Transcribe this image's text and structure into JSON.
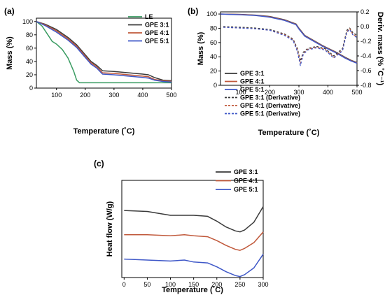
{
  "chart_data": [
    {
      "type": "line",
      "panel_label": "(a)",
      "xlabel": "Temperature (˚C)",
      "ylabel": "Mass (%)",
      "xlim": [
        30,
        500
      ],
      "ylim": [
        0,
        105
      ],
      "x_ticks": [
        100,
        200,
        300,
        400,
        500
      ],
      "y_ticks": [
        0,
        20,
        40,
        60,
        80,
        100
      ],
      "legend_position": "top-right",
      "series": [
        {
          "name": "LE",
          "color": "#3a9c62",
          "x": [
            30,
            50,
            70,
            85,
            100,
            120,
            140,
            160,
            170,
            180,
            200,
            300,
            400,
            500
          ],
          "y": [
            100,
            93,
            80,
            70,
            66,
            58,
            45,
            25,
            12,
            8,
            8,
            8,
            8,
            8
          ]
        },
        {
          "name": "GPE 3:1",
          "color": "#3a3a3a",
          "x": [
            30,
            60,
            100,
            140,
            170,
            200,
            220,
            240,
            260,
            300,
            350,
            400,
            420,
            440,
            470,
            500
          ],
          "y": [
            100,
            96,
            88,
            76,
            65,
            50,
            40,
            34,
            26,
            25,
            23,
            21,
            20,
            16,
            12,
            11
          ]
        },
        {
          "name": "GPE 4:1",
          "color": "#c0583a",
          "x": [
            30,
            60,
            100,
            140,
            170,
            200,
            220,
            240,
            260,
            300,
            350,
            400,
            420,
            440,
            470,
            500
          ],
          "y": [
            100,
            95,
            86,
            74,
            63,
            48,
            38,
            32,
            23,
            22,
            20,
            18,
            17,
            13,
            11,
            10
          ]
        },
        {
          "name": "GPE 5:1",
          "color": "#3f58c8",
          "x": [
            30,
            60,
            100,
            140,
            170,
            200,
            220,
            240,
            260,
            300,
            350,
            400,
            420,
            440,
            470,
            500
          ],
          "y": [
            100,
            94,
            84,
            72,
            61,
            46,
            36,
            30,
            21,
            20,
            18,
            16,
            15,
            12,
            10,
            9
          ]
        }
      ]
    },
    {
      "type": "line",
      "panel_label": "(b)",
      "xlabel": "Temperature (˚C)",
      "ylabel": "Mass (%)",
      "ylabel_right": "Deriv. mass (% ˚C⁻¹)",
      "xlim": [
        30,
        500
      ],
      "ylim": [
        0,
        103
      ],
      "ylim_right": [
        -0.8,
        0.2
      ],
      "x_ticks": [
        100,
        200,
        300,
        400,
        500
      ],
      "y_ticks": [
        0,
        20,
        40,
        60,
        80,
        100
      ],
      "y_ticks_right": [
        0.2,
        0.0,
        -0.2,
        -0.4,
        -0.6,
        -0.8
      ],
      "legend_position": "bottom-left",
      "series": [
        {
          "name": "GPE 3:1",
          "color": "#3a3a3a",
          "axis": "left",
          "x": [
            30,
            100,
            150,
            200,
            250,
            290,
            300,
            320,
            350,
            380,
            400,
            430,
            460,
            480,
            500
          ],
          "y": [
            100,
            99.5,
            98.5,
            96.5,
            92,
            86,
            80,
            70,
            63,
            56,
            52,
            46,
            39,
            35,
            32
          ]
        },
        {
          "name": "GPE 4:1",
          "color": "#c0583a",
          "axis": "left",
          "x": [
            30,
            100,
            150,
            200,
            250,
            290,
            300,
            320,
            350,
            380,
            400,
            430,
            460,
            480,
            500
          ],
          "y": [
            100,
            99.3,
            98.2,
            96,
            91.5,
            85.5,
            79.5,
            69.5,
            62.5,
            55.5,
            51.5,
            45.5,
            38.5,
            34.5,
            31.5
          ]
        },
        {
          "name": "GPE 5:1",
          "color": "#3f58c8",
          "axis": "left",
          "x": [
            30,
            100,
            150,
            200,
            250,
            290,
            300,
            320,
            350,
            380,
            400,
            430,
            460,
            480,
            500
          ],
          "y": [
            100,
            99,
            98,
            95.5,
            91,
            85,
            79,
            69,
            62,
            55,
            51,
            45,
            38,
            34,
            31
          ]
        },
        {
          "name": "GPE 3:1 (Derivative)",
          "color": "#3a3a3a",
          "axis": "right",
          "dashed": true,
          "x": [
            40,
            100,
            150,
            200,
            250,
            280,
            295,
            305,
            315,
            330,
            360,
            390,
            420,
            450,
            465,
            475,
            485,
            500
          ],
          "y": [
            0.0,
            -0.01,
            -0.02,
            -0.04,
            -0.1,
            -0.17,
            -0.3,
            -0.47,
            -0.35,
            -0.3,
            -0.27,
            -0.3,
            -0.4,
            -0.3,
            -0.05,
            -0.02,
            -0.08,
            -0.12
          ]
        },
        {
          "name": "GPE 4:1 (Derivative)",
          "color": "#c0583a",
          "axis": "right",
          "dashed": true,
          "x": [
            40,
            100,
            150,
            200,
            250,
            280,
            295,
            305,
            315,
            330,
            360,
            390,
            420,
            450,
            465,
            475,
            485,
            500
          ],
          "y": [
            -0.01,
            -0.02,
            -0.03,
            -0.05,
            -0.11,
            -0.18,
            -0.32,
            -0.5,
            -0.37,
            -0.31,
            -0.28,
            -0.31,
            -0.42,
            -0.32,
            -0.07,
            -0.03,
            -0.1,
            -0.14
          ]
        },
        {
          "name": "GPE 5:1 (Derivative)",
          "color": "#3f58c8",
          "axis": "right",
          "dashed": true,
          "x": [
            40,
            100,
            150,
            200,
            250,
            280,
            295,
            305,
            315,
            330,
            360,
            390,
            420,
            450,
            465,
            475,
            485,
            500
          ],
          "y": [
            -0.01,
            -0.02,
            -0.03,
            -0.05,
            -0.12,
            -0.19,
            -0.34,
            -0.53,
            -0.38,
            -0.32,
            -0.29,
            -0.32,
            -0.43,
            -0.33,
            -0.08,
            -0.04,
            -0.11,
            -0.15
          ]
        }
      ]
    },
    {
      "type": "line",
      "panel_label": "(c)",
      "xlabel": "Temperature (˚C)",
      "ylabel": "Heat flow (W/g)",
      "xlim": [
        -5,
        300
      ],
      "ylim": [
        0,
        1
      ],
      "x_ticks": [
        0,
        50,
        100,
        150,
        200,
        250,
        300
      ],
      "y_ticks_shown": false,
      "legend_position": "top-right",
      "series": [
        {
          "name": "GPE 3:1",
          "color": "#3a3a3a",
          "x": [
            0,
            50,
            100,
            120,
            150,
            180,
            200,
            220,
            240,
            250,
            260,
            280,
            300
          ],
          "y": [
            0.69,
            0.68,
            0.64,
            0.64,
            0.64,
            0.63,
            0.58,
            0.52,
            0.48,
            0.47,
            0.49,
            0.57,
            0.73
          ]
        },
        {
          "name": "GPE 4:1",
          "color": "#c0583a",
          "x": [
            0,
            50,
            100,
            130,
            150,
            180,
            200,
            220,
            240,
            250,
            260,
            280,
            300
          ],
          "y": [
            0.44,
            0.44,
            0.43,
            0.44,
            0.43,
            0.42,
            0.38,
            0.33,
            0.29,
            0.28,
            0.3,
            0.36,
            0.47
          ]
        },
        {
          "name": "GPE 5:1",
          "color": "#3f58c8",
          "x": [
            0,
            50,
            100,
            130,
            150,
            180,
            200,
            220,
            240,
            250,
            260,
            280,
            300
          ],
          "y": [
            0.19,
            0.18,
            0.17,
            0.18,
            0.16,
            0.15,
            0.11,
            0.06,
            0.02,
            0.01,
            0.03,
            0.1,
            0.24
          ]
        }
      ]
    }
  ]
}
